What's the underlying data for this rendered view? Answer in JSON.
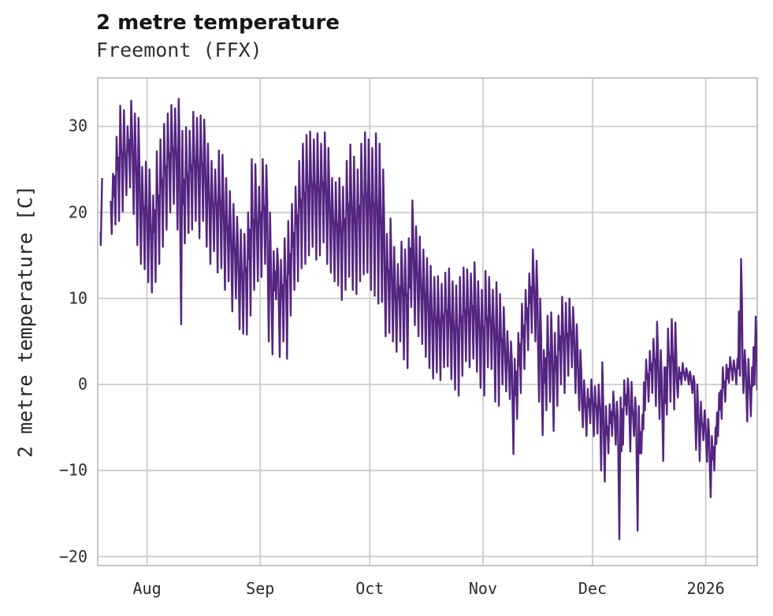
{
  "header": {
    "title": "2 metre temperature",
    "subtitle": "Freemont (FFX)"
  },
  "chart_data": {
    "type": "line",
    "title": "2 metre temperature",
    "subtitle": "Freemont (FFX)",
    "xlabel": "",
    "ylabel": "2 metre temperature [C]",
    "grid": true,
    "legend": "none",
    "line_color": "#542581",
    "grid_color": "#cccccc",
    "border_color": "#c6c6c6",
    "background_color": "#ffffff",
    "ylim": [
      -21.05,
      35.63
    ],
    "xlim_days": [
      -0.5,
      180.1
    ],
    "yticks": [
      {
        "value": 30,
        "label": "30"
      },
      {
        "value": 20,
        "label": "20"
      },
      {
        "value": 10,
        "label": "10"
      },
      {
        "value": 0,
        "label": "0"
      },
      {
        "value": -10,
        "label": "−10"
      },
      {
        "value": -20,
        "label": "−20"
      }
    ],
    "xticks": [
      {
        "day": 13,
        "label": "Aug"
      },
      {
        "day": 44,
        "label": "Sep"
      },
      {
        "day": 74,
        "label": "Oct"
      },
      {
        "day": 105,
        "label": "Nov"
      },
      {
        "day": 135,
        "label": "Dec"
      },
      {
        "day": 166,
        "label": "2026"
      }
    ],
    "x_start": "day 0 = mid-July, two missing days after day 0",
    "series_name": "2 metre temperature",
    "series_daily_min_max": [
      [
        16.2,
        24
      ],
      null,
      null,
      [
        17.5,
        24.5
      ],
      [
        18.6,
        28.8
      ],
      [
        19,
        32.4
      ],
      [
        20.1,
        31.9
      ],
      [
        22,
        30
      ],
      [
        22.9,
        33
      ],
      [
        19.8,
        31.5
      ],
      [
        16.2,
        31
      ],
      [
        14,
        25.3
      ],
      [
        13.4,
        25.9
      ],
      [
        11.9,
        25
      ],
      [
        10.7,
        22
      ],
      [
        11.9,
        27.1
      ],
      [
        14,
        28.5
      ],
      [
        16,
        30.3
      ],
      [
        18,
        31.5
      ],
      [
        20,
        32.5
      ],
      [
        21,
        32.1
      ],
      [
        18,
        33.2
      ],
      [
        7,
        29.5
      ],
      [
        16.4,
        29.9
      ],
      [
        17.6,
        29.5
      ],
      [
        18,
        31.7
      ],
      [
        19,
        31
      ],
      [
        17,
        31.3
      ],
      [
        19,
        30.8
      ],
      [
        16,
        28
      ],
      [
        14,
        26
      ],
      [
        15.5,
        25
      ],
      [
        13,
        27.2
      ],
      [
        13.5,
        26.7
      ],
      [
        11,
        24
      ],
      [
        12,
        22.5
      ],
      [
        8.5,
        21
      ],
      [
        10,
        19.5
      ],
      [
        6.4,
        18
      ],
      [
        5.9,
        17.5
      ],
      [
        5.8,
        20
      ],
      [
        8,
        26.2
      ],
      [
        11,
        25.6
      ],
      [
        12,
        23
      ],
      [
        12.5,
        26.2
      ],
      [
        14,
        25.5
      ],
      [
        5,
        20
      ],
      [
        3.5,
        15.5
      ],
      [
        9.9,
        15.8
      ],
      [
        3.2,
        14.5
      ],
      [
        5,
        17
      ],
      [
        3,
        19
      ],
      [
        8,
        21
      ],
      [
        11,
        23
      ],
      [
        12,
        26
      ],
      [
        13.5,
        28
      ],
      [
        14,
        29
      ],
      [
        15,
        29.4
      ],
      [
        16,
        28.5
      ],
      [
        14.5,
        29.2
      ],
      [
        15,
        28
      ],
      [
        16.5,
        29.3
      ],
      [
        14,
        27.5
      ],
      [
        13,
        24
      ],
      [
        12,
        23.5
      ],
      [
        11.5,
        24
      ],
      [
        9.8,
        23
      ],
      [
        11,
        26
      ],
      [
        12.5,
        27.9
      ],
      [
        11,
        26.5
      ],
      [
        10.5,
        25
      ],
      [
        12,
        28
      ],
      [
        12.8,
        29.3
      ],
      [
        13,
        28.5
      ],
      [
        11,
        27.5
      ],
      [
        10.3,
        29.2
      ],
      [
        9.4,
        28
      ],
      [
        9.6,
        25
      ],
      [
        5.6,
        17.5
      ],
      [
        6,
        19.3
      ],
      [
        5,
        16
      ],
      [
        3.8,
        14
      ],
      [
        5,
        16.6
      ],
      [
        2.9,
        15.7
      ],
      [
        1.9,
        17
      ],
      [
        9,
        21.4
      ],
      [
        6.9,
        18.4
      ],
      [
        5.6,
        17.2
      ],
      [
        4.7,
        15.7
      ],
      [
        3.2,
        14.7
      ],
      [
        1.9,
        13.8
      ],
      [
        0.7,
        12.5
      ],
      [
        1.4,
        12.6
      ],
      [
        0.5,
        11.7
      ],
      [
        2,
        13
      ],
      [
        2.1,
        13.5
      ],
      [
        0.6,
        12
      ],
      [
        -0.6,
        11.5
      ],
      [
        -1.3,
        12.5
      ],
      [
        1,
        13.6
      ],
      [
        2.7,
        13.4
      ],
      [
        2,
        12.9
      ],
      [
        3,
        14.2
      ],
      [
        1.5,
        12
      ],
      [
        -0.4,
        11
      ],
      [
        -1.3,
        13.2
      ],
      [
        2,
        12.5
      ],
      [
        1.8,
        11
      ],
      [
        -2,
        11.9
      ],
      [
        -2.5,
        10.5
      ],
      [
        0,
        9
      ],
      [
        -0.8,
        6.2
      ],
      [
        -1.7,
        5
      ],
      [
        -8.1,
        3
      ],
      [
        -4,
        6
      ],
      [
        -1,
        9.4
      ],
      [
        1.8,
        11
      ],
      [
        4,
        12.9
      ],
      [
        6,
        15.7
      ],
      [
        5,
        14.4
      ],
      [
        -2,
        10
      ],
      [
        -5.9,
        4
      ],
      [
        -3,
        8
      ],
      [
        -2,
        8.4
      ],
      [
        -5.4,
        6
      ],
      [
        -2.5,
        8
      ],
      [
        0,
        10.2
      ],
      [
        -1,
        9.5
      ],
      [
        1,
        10
      ],
      [
        2,
        9
      ],
      [
        -1,
        7
      ],
      [
        -3,
        4
      ],
      [
        -5,
        0.5
      ],
      [
        -6,
        -0.5
      ],
      [
        -4.5,
        0.6
      ],
      [
        -6,
        -0.2
      ],
      [
        -5.7,
        0
      ],
      [
        -10,
        2.6
      ],
      [
        -11.3,
        -2.5
      ],
      [
        -8,
        -2.3
      ],
      [
        -6,
        -0.8
      ],
      [
        -7,
        -2
      ],
      [
        -18,
        -1.5
      ],
      [
        -7,
        0.5
      ],
      [
        -3.5,
        0.7
      ],
      [
        -7.8,
        0.3
      ],
      [
        -6,
        -1.5
      ],
      [
        -17,
        -2.5
      ],
      [
        -8,
        -3.5
      ],
      [
        -3,
        2.9
      ],
      [
        -2,
        3.9
      ],
      [
        -1,
        5.3
      ],
      [
        -2.5,
        7.3
      ],
      [
        -4,
        4
      ],
      [
        -8.9,
        2
      ],
      [
        -3.5,
        6.5
      ],
      [
        -2,
        7.6
      ],
      [
        -2.9,
        7.2
      ],
      [
        -1.5,
        2
      ],
      [
        0,
        2.5
      ],
      [
        0.5,
        1.9
      ],
      [
        0,
        1.5
      ],
      [
        -1,
        1
      ],
      [
        -7.6,
        0
      ],
      [
        -8.9,
        -2
      ],
      [
        -6.5,
        -3
      ],
      [
        -9,
        -4
      ],
      [
        -13.1,
        -6
      ],
      [
        -10,
        -5
      ],
      [
        -6,
        -1
      ],
      [
        -4,
        2
      ],
      [
        -2,
        2.3
      ],
      [
        0.2,
        3.2
      ],
      [
        0.5,
        2.8
      ],
      [
        0,
        3
      ],
      [
        1,
        14.6
      ],
      [
        -1,
        4
      ],
      [
        -4.3,
        3
      ],
      [
        -3.7,
        2
      ],
      [
        0,
        7.9
      ],
      [
        -6.7,
        3.5
      ]
    ]
  }
}
